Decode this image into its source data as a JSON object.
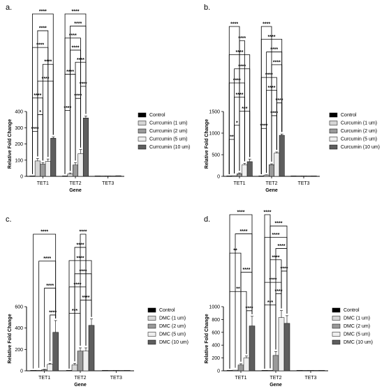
{
  "colors": {
    "series": [
      "#000000",
      "#d6d6d6",
      "#9a9a9a",
      "#efefef",
      "#5e5e5e"
    ],
    "axis": "#000000"
  },
  "chart_data": [
    {
      "panel": "a.",
      "type": "bar",
      "xlabel": "Gene",
      "ylabel": "Relative Fold Change",
      "ylim": [
        0,
        400
      ],
      "yticks": [
        "0",
        "100",
        "200",
        "300",
        "400"
      ],
      "categories": [
        "TET1",
        "TET2",
        "TET3"
      ],
      "series": [
        {
          "name": "Control",
          "values": [
            1,
            1,
            1
          ],
          "err": [
            0.5,
            0.5,
            0.3
          ]
        },
        {
          "name": "Currcumin (1 um)",
          "values": [
            95,
            15,
            1
          ],
          "err": [
            15,
            6,
            0.5
          ]
        },
        {
          "name": "Currcumin (2 um)",
          "values": [
            75,
            70,
            1
          ],
          "err": [
            10,
            15,
            0.5
          ]
        },
        {
          "name": "Currcumin (5 um)",
          "values": [
            92,
            140,
            2
          ],
          "err": [
            15,
            25,
            0.5
          ]
        },
        {
          "name": "Currcumin (10 um)",
          "values": [
            235,
            360,
            4
          ],
          "err": [
            8,
            12,
            1
          ]
        }
      ],
      "sig_brackets": [
        {
          "cat": 0,
          "from": 0,
          "to": 1,
          "label": "****"
        },
        {
          "cat": 0,
          "from": 1,
          "to": 2,
          "label": "*"
        },
        {
          "cat": 0,
          "from": 0,
          "to": 2,
          "label": "****"
        },
        {
          "cat": 0,
          "from": 1,
          "to": 4,
          "label": "****"
        },
        {
          "cat": 0,
          "from": 2,
          "to": 4,
          "label": "****"
        },
        {
          "cat": 0,
          "from": 0,
          "to": 3,
          "label": "****"
        },
        {
          "cat": 0,
          "from": 1,
          "to": 3,
          "label": "****"
        },
        {
          "cat": 0,
          "from": 0,
          "to": 4,
          "label": "****"
        },
        {
          "cat": 1,
          "from": 0,
          "to": 1,
          "label": "****"
        },
        {
          "cat": 1,
          "from": 2,
          "to": 3,
          "label": "****"
        },
        {
          "cat": 1,
          "from": 3,
          "to": 4,
          "label": "****"
        },
        {
          "cat": 1,
          "from": 0,
          "to": 2,
          "label": "****"
        },
        {
          "cat": 1,
          "from": 2,
          "to": 4,
          "label": "****"
        },
        {
          "cat": 1,
          "from": 1,
          "to": 3,
          "label": "****"
        },
        {
          "cat": 1,
          "from": 0,
          "to": 3,
          "label": "****"
        },
        {
          "cat": 1,
          "from": 1,
          "to": 4,
          "label": "****"
        },
        {
          "cat": 1,
          "from": 0,
          "to": 4,
          "label": "****"
        }
      ]
    },
    {
      "panel": "b.",
      "type": "bar",
      "xlabel": "Gene",
      "ylabel": "Relative Fold Change",
      "ylim": [
        0,
        1500
      ],
      "yticks": [
        "0",
        "500",
        "1000",
        "1500"
      ],
      "categories": [
        "TET1",
        "TET2",
        "TET3"
      ],
      "series": [
        {
          "name": "Control",
          "values": [
            1,
            1,
            1
          ],
          "err": [
            0.5,
            0.5,
            0.3
          ]
        },
        {
          "name": "Curcumin (1 um)",
          "values": [
            15,
            30,
            1
          ],
          "err": [
            5,
            5,
            0.5
          ]
        },
        {
          "name": "Curcumin (2 um)",
          "values": [
            60,
            270,
            1
          ],
          "err": [
            20,
            20,
            0.5
          ]
        },
        {
          "name": "Curcumin (5 um)",
          "values": [
            270,
            540,
            2
          ],
          "err": [
            30,
            25,
            0.5
          ]
        },
        {
          "name": "Curcumin (10 um)",
          "values": [
            340,
            950,
            3
          ],
          "err": [
            60,
            30,
            1
          ]
        }
      ],
      "sig_brackets": [
        {
          "cat": 0,
          "from": 0,
          "to": 1,
          "label": "**"
        },
        {
          "cat": 0,
          "from": 1,
          "to": 2,
          "label": "*"
        },
        {
          "cat": 0,
          "from": 2,
          "to": 4,
          "label": "***"
        },
        {
          "cat": 0,
          "from": 1,
          "to": 3,
          "label": "****"
        },
        {
          "cat": 0,
          "from": 0,
          "to": 3,
          "label": "****"
        },
        {
          "cat": 0,
          "from": 1,
          "to": 4,
          "label": "****"
        },
        {
          "cat": 0,
          "from": 0,
          "to": 4,
          "label": "****"
        },
        {
          "cat": 0,
          "from": 2,
          "to": 3,
          "label": "****"
        },
        {
          "cat": 0,
          "from": 0,
          "to": 2,
          "label": "****"
        },
        {
          "cat": 1,
          "from": 0,
          "to": 1,
          "label": "****"
        },
        {
          "cat": 1,
          "from": 2,
          "to": 3,
          "label": "****"
        },
        {
          "cat": 1,
          "from": 3,
          "to": 4,
          "label": "****"
        },
        {
          "cat": 1,
          "from": 1,
          "to": 3,
          "label": "****"
        },
        {
          "cat": 1,
          "from": 0,
          "to": 3,
          "label": "****"
        },
        {
          "cat": 1,
          "from": 2,
          "to": 4,
          "label": "****"
        },
        {
          "cat": 1,
          "from": 1,
          "to": 4,
          "label": "****"
        },
        {
          "cat": 1,
          "from": 0,
          "to": 4,
          "label": "****"
        },
        {
          "cat": 1,
          "from": 0,
          "to": 2,
          "label": "****"
        }
      ]
    },
    {
      "panel": "c.",
      "type": "bar",
      "xlabel": "Gene",
      "ylabel": "Relative Fold Change",
      "ylim": [
        0,
        600
      ],
      "yticks": [
        "0",
        "200",
        "400",
        "600"
      ],
      "categories": [
        "TET1",
        "TET2",
        "TET3"
      ],
      "series": [
        {
          "name": "Control",
          "values": [
            1,
            1,
            1
          ],
          "err": [
            0.5,
            0.5,
            0.3
          ]
        },
        {
          "name": "DMC (1 um)",
          "values": [
            5,
            55,
            1
          ],
          "err": [
            3,
            15,
            0.5
          ]
        },
        {
          "name": "DMC (2 um)",
          "values": [
            10,
            185,
            1
          ],
          "err": [
            4,
            30,
            0.5
          ]
        },
        {
          "name": "DMC (5 um)",
          "values": [
            60,
            185,
            2
          ],
          "err": [
            10,
            30,
            0.5
          ]
        },
        {
          "name": "DMC (10 um)",
          "values": [
            360,
            425,
            3
          ],
          "err": [
            110,
            60,
            1
          ]
        }
      ],
      "sig_brackets": [
        {
          "cat": 0,
          "from": 3,
          "to": 4,
          "label": "****"
        },
        {
          "cat": 0,
          "from": 2,
          "to": 4,
          "label": "****"
        },
        {
          "cat": 0,
          "from": 1,
          "to": 4,
          "label": "****"
        },
        {
          "cat": 0,
          "from": 0,
          "to": 4,
          "label": "****"
        },
        {
          "cat": 1,
          "from": 0,
          "to": 2,
          "label": "***"
        },
        {
          "cat": 1,
          "from": 2,
          "to": 4,
          "label": "****"
        },
        {
          "cat": 1,
          "from": 0,
          "to": 3,
          "label": "****"
        },
        {
          "cat": 1,
          "from": 1,
          "to": 4,
          "label": "****"
        },
        {
          "cat": 1,
          "from": 0,
          "to": 4,
          "label": "****"
        },
        {
          "cat": 1,
          "from": 1,
          "to": 3,
          "label": "****"
        },
        {
          "cat": 1,
          "from": 2,
          "to": 3,
          "label": "****"
        }
      ]
    },
    {
      "panel": "d.",
      "type": "bar",
      "xlabel": "Gene",
      "ylabel": "Relative Fold Change",
      "ylim": [
        0,
        1000
      ],
      "yticks": [
        "0",
        "200",
        "400",
        "600",
        "800",
        "1000"
      ],
      "categories": [
        "TET1",
        "TET2",
        "TET3"
      ],
      "series": [
        {
          "name": "Control",
          "values": [
            1,
            1,
            1
          ],
          "err": [
            0.5,
            0.5,
            0.3
          ]
        },
        {
          "name": "DMC (1 um)",
          "values": [
            10,
            5,
            1
          ],
          "err": [
            5,
            3,
            0.5
          ]
        },
        {
          "name": "DMC (2 um)",
          "values": [
            90,
            240,
            1
          ],
          "err": [
            20,
            60,
            0.5
          ]
        },
        {
          "name": "DMC (5 um)",
          "values": [
            200,
            830,
            2
          ],
          "err": [
            30,
            110,
            0.5
          ]
        },
        {
          "name": "DMC (10 um)",
          "values": [
            700,
            740,
            3
          ],
          "err": [
            150,
            120,
            1
          ]
        }
      ],
      "sig_brackets": [
        {
          "cat": 0,
          "from": 3,
          "to": 4,
          "label": "****"
        },
        {
          "cat": 0,
          "from": 0,
          "to": 3,
          "label": "**"
        },
        {
          "cat": 0,
          "from": 2,
          "to": 4,
          "label": "****"
        },
        {
          "cat": 0,
          "from": 0,
          "to": 2,
          "label": "**"
        },
        {
          "cat": 0,
          "from": 1,
          "to": 4,
          "label": "****"
        },
        {
          "cat": 0,
          "from": 0,
          "to": 4,
          "label": "****"
        },
        {
          "cat": 1,
          "from": 0,
          "to": 2,
          "label": "***"
        },
        {
          "cat": 1,
          "from": 2,
          "to": 3,
          "label": "****"
        },
        {
          "cat": 1,
          "from": 0,
          "to": 3,
          "label": "****"
        },
        {
          "cat": 1,
          "from": 3,
          "to": 4,
          "label": "****"
        },
        {
          "cat": 1,
          "from": 1,
          "to": 3,
          "label": "****"
        },
        {
          "cat": 1,
          "from": 2,
          "to": 4,
          "label": "****"
        },
        {
          "cat": 1,
          "from": 0,
          "to": 4,
          "label": "****"
        },
        {
          "cat": 1,
          "from": 1,
          "to": 4,
          "label": "****"
        },
        {
          "cat": 1,
          "from": 0,
          "to": 1,
          "label": "****"
        }
      ]
    }
  ]
}
